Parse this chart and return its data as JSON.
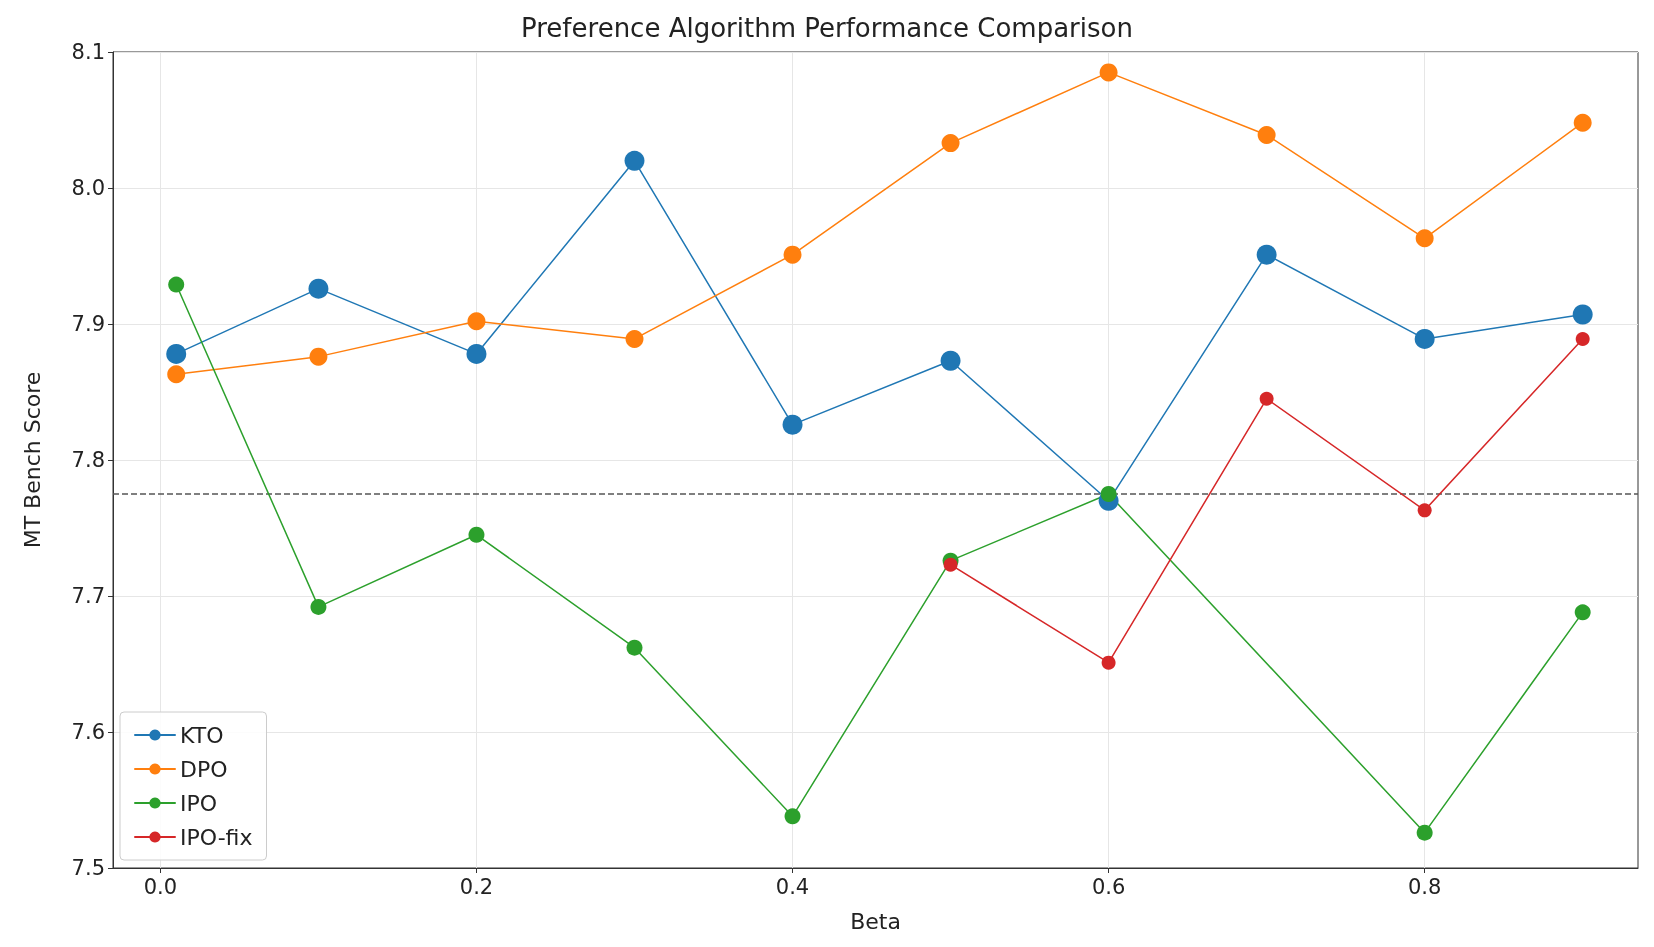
{
  "chart_data": {
    "type": "line",
    "title": "Preference Algorithm Performance Comparison",
    "xlabel": "Beta",
    "ylabel": "MT Bench Score",
    "x": [
      0.01,
      0.1,
      0.2,
      0.3,
      0.4,
      0.5,
      0.6,
      0.7,
      0.8,
      0.9
    ],
    "series": [
      {
        "name": "KTO",
        "color": "#1f77b4",
        "values": [
          7.878,
          7.926,
          7.878,
          8.02,
          7.826,
          7.873,
          7.77,
          7.951,
          7.889,
          7.907
        ]
      },
      {
        "name": "DPO",
        "color": "#ff7f0e",
        "values": [
          7.863,
          7.876,
          7.902,
          7.889,
          7.951,
          8.033,
          8.085,
          8.039,
          7.963,
          8.048
        ]
      },
      {
        "name": "IPO",
        "color": "#2ca02c",
        "x": [
          0.01,
          0.1,
          0.2,
          0.3,
          0.4,
          0.5,
          0.6,
          0.8,
          0.9
        ],
        "values": [
          7.929,
          7.692,
          7.745,
          7.662,
          7.538,
          7.726,
          7.775,
          7.526,
          7.688
        ]
      },
      {
        "name": "IPO-fix",
        "color": "#d62728",
        "x": [
          0.5,
          0.6,
          0.7,
          0.8,
          0.9
        ],
        "values": [
          7.723,
          7.651,
          7.845,
          7.763,
          7.889
        ]
      }
    ],
    "ref_lines": [
      {
        "axis": "y",
        "value": 7.775,
        "color": "#555555",
        "line_style": "dashed"
      }
    ],
    "xlim": [
      -0.03,
      0.935
    ],
    "xticks": [
      {
        "value": 0,
        "label": "0.0"
      },
      0.2,
      0.4,
      0.6,
      0.8
    ],
    "ylim": [
      7.5,
      8.1
    ],
    "yticks": [
      7.5,
      7.6,
      7.7,
      7.8,
      7.9,
      {
        "value": 8,
        "label": "8.0"
      },
      8.1
    ],
    "grid": true,
    "legend": "bottom left",
    "marker": "circle",
    "line_style": "solid"
  }
}
